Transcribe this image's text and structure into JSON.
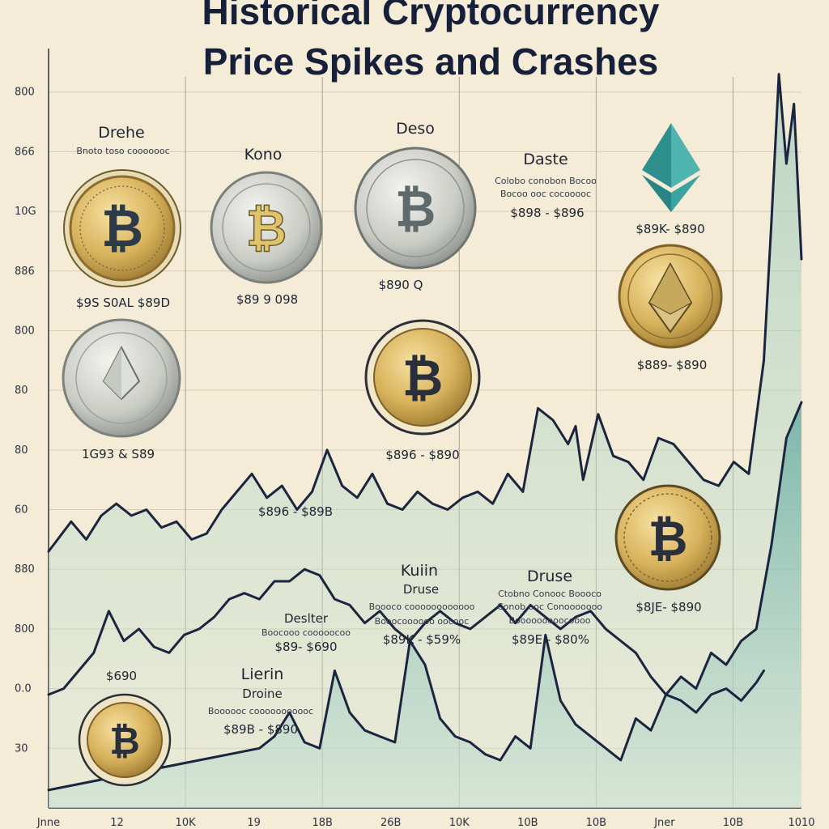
{
  "chart_data": {
    "type": "line",
    "title_lines": [
      "Historical Cryptocurrency",
      "Price Spikes and Crashes"
    ],
    "xlabel": "",
    "ylabel": "",
    "x_tick_labels": [
      "Jnne",
      "12",
      "10K",
      "19",
      "18B",
      "26B",
      "10K",
      "10B",
      "10B",
      "Jner",
      "10B",
      "1010"
    ],
    "y_tick_labels": [
      "800",
      "866",
      "10G",
      "886",
      "800",
      "80",
      "80",
      "60",
      "880",
      "800",
      "0.0",
      "30"
    ],
    "y_tick_values": [
      12,
      11,
      10,
      9,
      8,
      7,
      6,
      5,
      4,
      3,
      2,
      1
    ],
    "ylim": [
      0,
      13
    ],
    "xlim": [
      0,
      100
    ],
    "grid": true,
    "series": [
      {
        "x": [
          0,
          3,
          5,
          7,
          9,
          11,
          13,
          15,
          17,
          19,
          21,
          23,
          25,
          27,
          29,
          31,
          33,
          35,
          37,
          39,
          41,
          43,
          45,
          47,
          49,
          51,
          53,
          55,
          57,
          59,
          61,
          63,
          65,
          67,
          69,
          70,
          71,
          73,
          75,
          77,
          79,
          81,
          83,
          85,
          87,
          89,
          91,
          93,
          95,
          96,
          97,
          98,
          99,
          100
        ],
        "values": [
          4.3,
          4.8,
          4.5,
          4.9,
          5.1,
          4.9,
          5.0,
          4.7,
          4.8,
          4.5,
          4.6,
          5.0,
          5.3,
          5.6,
          5.2,
          5.4,
          5.0,
          5.3,
          6.0,
          5.4,
          5.2,
          5.6,
          5.1,
          5.0,
          5.3,
          5.1,
          5.0,
          5.2,
          5.3,
          5.1,
          5.6,
          5.3,
          6.7,
          6.5,
          6.1,
          6.4,
          5.5,
          6.6,
          5.9,
          5.8,
          5.5,
          6.2,
          6.1,
          5.8,
          5.5,
          5.4,
          5.8,
          5.6,
          7.5,
          9.8,
          12.3,
          10.8,
          11.8,
          9.2
        ]
      },
      {
        "x": [
          0,
          2,
          4,
          6,
          8,
          10,
          12,
          14,
          16,
          18,
          20,
          22,
          24,
          26,
          28,
          30,
          32,
          34,
          36,
          38,
          40,
          42,
          44,
          46,
          48,
          50,
          52,
          54,
          56,
          58,
          60,
          62,
          64,
          66,
          68,
          70,
          72,
          74,
          76,
          78,
          80,
          82,
          84,
          86,
          88,
          90,
          92,
          94,
          95
        ],
        "values": [
          1.9,
          2.0,
          2.3,
          2.6,
          3.3,
          2.8,
          3.0,
          2.7,
          2.6,
          2.9,
          3.0,
          3.2,
          3.5,
          3.6,
          3.5,
          3.8,
          3.8,
          4.0,
          3.9,
          3.5,
          3.4,
          3.1,
          3.3,
          3.0,
          2.8,
          3.1,
          3.3,
          3.1,
          3.0,
          3.2,
          3.4,
          3.1,
          3.4,
          3.2,
          3.0,
          3.2,
          3.3,
          3.0,
          2.8,
          2.6,
          2.2,
          1.9,
          1.8,
          1.6,
          1.9,
          2.0,
          1.8,
          2.1,
          2.3
        ]
      },
      {
        "x": [
          0,
          4,
          8,
          12,
          16,
          20,
          24,
          28,
          30,
          32,
          34,
          36,
          38,
          40,
          42,
          44,
          46,
          48,
          50,
          52,
          54,
          56,
          58,
          60,
          62,
          64,
          66,
          68,
          70,
          72,
          74,
          76,
          78,
          80,
          82,
          84,
          86,
          88,
          90,
          92,
          94,
          96,
          98,
          100
        ],
        "values": [
          0.3,
          0.4,
          0.5,
          0.6,
          0.7,
          0.8,
          0.9,
          1.0,
          1.2,
          1.6,
          1.1,
          1.0,
          2.3,
          1.6,
          1.3,
          1.2,
          1.1,
          2.8,
          2.4,
          1.5,
          1.2,
          1.1,
          0.9,
          0.8,
          1.2,
          1.0,
          2.9,
          1.8,
          1.4,
          1.2,
          1.0,
          0.8,
          1.5,
          1.3,
          1.9,
          2.2,
          2.0,
          2.6,
          2.4,
          2.8,
          3.0,
          4.4,
          6.2,
          6.8
        ]
      }
    ],
    "annotations": [
      {
        "id": "a1",
        "title": "Drehe",
        "desc": [
          "Bnoto toso cooooooc"
        ],
        "range": ""
      },
      {
        "id": "a2",
        "title": "",
        "desc": [],
        "range": "$9S  S0AL  $89D"
      },
      {
        "id": "a3",
        "title": "",
        "desc": [],
        "range": "1G93  &  S89"
      },
      {
        "id": "a4",
        "title": "Kono",
        "desc": [],
        "range": "$89  9  098"
      },
      {
        "id": "a5",
        "title": "",
        "desc": [],
        "range": "$896 - $89B"
      },
      {
        "id": "a6",
        "title": "Deso",
        "desc": [],
        "range": ""
      },
      {
        "id": "a7",
        "title": "",
        "desc": [],
        "range": "$896 - $890"
      },
      {
        "id": "a8",
        "title": "Daste",
        "desc": [
          "Colobo conobon Bocoo",
          "Bocoo ooc cocooooc"
        ],
        "range": "$898 - $896"
      },
      {
        "id": "a9",
        "title": "",
        "desc": [],
        "range": "$89K- $890"
      },
      {
        "id": "a10",
        "title": "",
        "desc": [],
        "range": "$889- $890"
      },
      {
        "id": "a11",
        "title": "",
        "desc": [],
        "range": "$890  Q"
      },
      {
        "id": "a12",
        "title": "",
        "desc": [],
        "range": "$690"
      },
      {
        "id": "a13",
        "title": "Deslter",
        "desc": [
          "Boocooo cooooocoo"
        ],
        "range": "$89-  $690"
      },
      {
        "id": "a14",
        "title": "Kuiin",
        "subtitle": "Druse",
        "desc": [
          "Boooco coooooooooooo",
          "Booocoooooo oocooc"
        ],
        "range": "$89K - $59%"
      },
      {
        "id": "a15",
        "title": "Druse",
        "desc": [
          "Ctobno Conooc Boooco",
          "Conob ooc Conooooooo",
          "Booooooooocoooo"
        ],
        "range": "$89E - $80%"
      },
      {
        "id": "a16",
        "title": "",
        "desc": [],
        "range": "$8JE-  $890"
      },
      {
        "id": "a17",
        "title": "Lierin",
        "subtitle": "Droine",
        "desc": [
          "Boooooc cooooooooooc"
        ],
        "range": "$89B - $890"
      }
    ],
    "coin_icons": [
      {
        "id": "c1",
        "type": "bitcoin-coin"
      },
      {
        "id": "c2",
        "type": "bitcoin-coin"
      },
      {
        "id": "c3",
        "type": "bitcoin-coin"
      },
      {
        "id": "c4",
        "type": "ethereum-coin"
      },
      {
        "id": "c5",
        "type": "bitcoin-coin"
      },
      {
        "id": "c6",
        "type": "ethereum-coin"
      },
      {
        "id": "c7",
        "type": "bitcoin-coin"
      },
      {
        "id": "c8",
        "type": "bitcoin-coin"
      },
      {
        "id": "c9",
        "type": "ethereum-logo"
      }
    ]
  },
  "colors": {
    "background": "#f4ecd6",
    "line": "#1c2540",
    "area_fill": "#7fb8ad",
    "gold": "#d9b45a",
    "silver": "#c6c8c4",
    "teal": "#3aa3a0"
  }
}
